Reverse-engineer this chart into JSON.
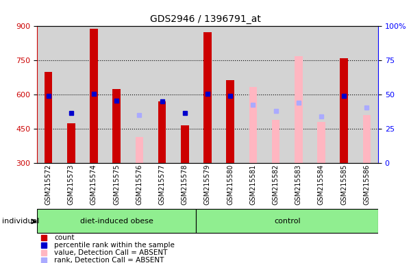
{
  "title": "GDS2946 / 1396791_at",
  "samples": [
    "GSM215572",
    "GSM215573",
    "GSM215574",
    "GSM215575",
    "GSM215576",
    "GSM215577",
    "GSM215578",
    "GSM215579",
    "GSM215580",
    "GSM215581",
    "GSM215582",
    "GSM215583",
    "GSM215584",
    "GSM215585",
    "GSM215586"
  ],
  "count_values": [
    700,
    475,
    890,
    625,
    null,
    570,
    465,
    875,
    665,
    null,
    null,
    null,
    null,
    760,
    null
  ],
  "count_absent": [
    null,
    null,
    null,
    null,
    415,
    null,
    null,
    null,
    null,
    635,
    490,
    770,
    480,
    null,
    510
  ],
  "rank_values": [
    595,
    520,
    605,
    575,
    null,
    570,
    520,
    605,
    595,
    null,
    null,
    null,
    null,
    595,
    null
  ],
  "rank_absent": [
    null,
    null,
    null,
    null,
    510,
    null,
    null,
    null,
    null,
    555,
    530,
    565,
    505,
    null,
    545
  ],
  "ymin": 300,
  "ymax": 900,
  "yticks": [
    300,
    450,
    600,
    750,
    900
  ],
  "right_yticks": [
    0,
    25,
    50,
    75,
    100
  ],
  "bar_color": "#cc0000",
  "absent_bar_color": "#FFB6C1",
  "rank_color": "#0000cc",
  "rank_absent_color": "#aaaaff",
  "bg_color": "#d3d3d3",
  "ylabel_color": "#cc0000"
}
